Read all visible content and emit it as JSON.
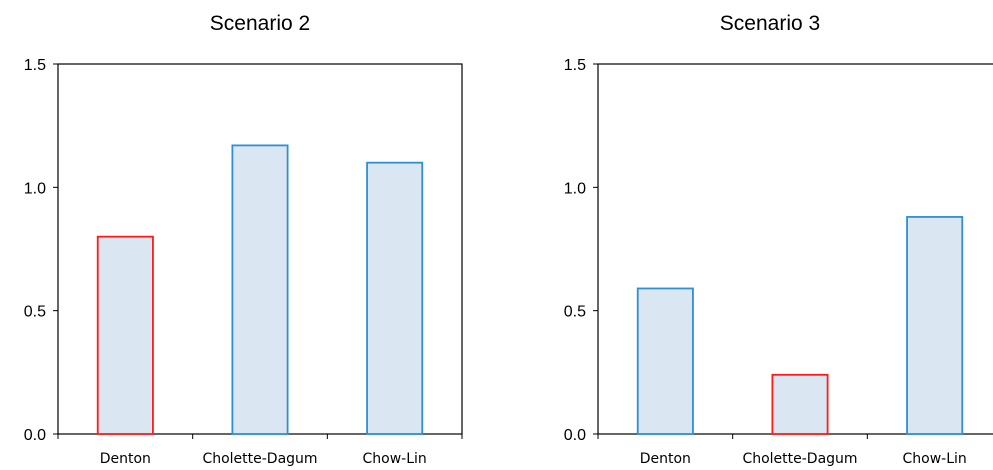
{
  "chart_data": [
    {
      "type": "bar",
      "title": "Scenario 2",
      "categories": [
        "Denton",
        "Cholette-Dagum",
        "Chow-Lin"
      ],
      "values": [
        0.8,
        1.17,
        1.1
      ],
      "highlight": [
        true,
        false,
        false
      ],
      "ylim": [
        0,
        1.5
      ],
      "yticks": [
        "0.0",
        "0.5",
        "1.0",
        "1.5"
      ],
      "grid": false,
      "colors": {
        "fill": "#dae6f1",
        "border": "#2f8fd0",
        "highlight_border": "#ff1a1a"
      }
    },
    {
      "type": "bar",
      "title": "Scenario 3",
      "categories": [
        "Denton",
        "Cholette-Dagum",
        "Chow-Lin"
      ],
      "values": [
        0.59,
        0.24,
        0.88
      ],
      "highlight": [
        false,
        true,
        false
      ],
      "ylim": [
        0,
        1.5
      ],
      "yticks": [
        "0.0",
        "0.5",
        "1.0",
        "1.5"
      ],
      "grid": false,
      "colors": {
        "fill": "#dae6f1",
        "border": "#2f8fd0",
        "highlight_border": "#ff1a1a"
      }
    }
  ]
}
